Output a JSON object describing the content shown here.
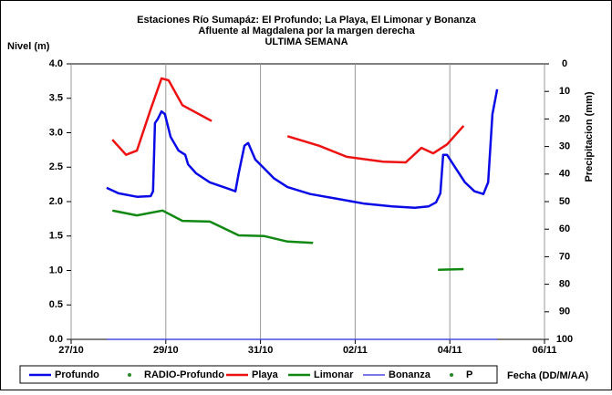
{
  "chart_data": {
    "type": "line",
    "title": "Estaciones Río Sumapáz: El Profundo; La Playa, El Limonar y Bonanza",
    "subtitle": [
      "Afluente al Magdalena por la margen derecha",
      "ULTIMA SEMANA"
    ],
    "ylabel": "Nivel (m)",
    "y2label": "Precipitacion (mm)",
    "xlabel": "Fecha (DD/M/AA)",
    "xlim": [
      0,
      10
    ],
    "xticks": [
      {
        "value": 0,
        "label": "27/10"
      },
      {
        "value": 2,
        "label": "29/10"
      },
      {
        "value": 4,
        "label": "31/10"
      },
      {
        "value": 6,
        "label": "02/11"
      },
      {
        "value": 8,
        "label": "04/11"
      },
      {
        "value": 10,
        "label": "06/11"
      }
    ],
    "xgrid": true,
    "ylim": [
      0,
      4
    ],
    "yticks": [
      {
        "value": 0,
        "label": "0.0"
      },
      {
        "value": 0.5,
        "label": "0.5"
      },
      {
        "value": 1,
        "label": "1.0"
      },
      {
        "value": 1.5,
        "label": "1.5"
      },
      {
        "value": 2,
        "label": "2.0"
      },
      {
        "value": 2.5,
        "label": "2.5"
      },
      {
        "value": 3,
        "label": "3.0"
      },
      {
        "value": 3.5,
        "label": "3.5"
      },
      {
        "value": 4,
        "label": "4.0"
      }
    ],
    "y2lim": [
      100,
      0
    ],
    "y2ticks": [
      0,
      10,
      20,
      30,
      40,
      50,
      60,
      70,
      80,
      90,
      100
    ],
    "series": [
      {
        "name": "Profundo",
        "color": "#0a0ae6",
        "style": "line",
        "x": [
          0.75,
          1.0,
          1.39,
          1.68,
          1.73,
          1.77,
          1.83,
          1.91,
          1.98,
          2.1,
          2.27,
          2.41,
          2.47,
          2.64,
          2.93,
          3.31,
          3.47,
          3.54,
          3.66,
          3.74,
          3.89,
          4.08,
          4.28,
          4.57,
          5.05,
          5.63,
          6.2,
          6.78,
          7.26,
          7.55,
          7.71,
          7.8,
          7.86,
          7.94,
          8.13,
          8.32,
          8.52,
          8.71,
          8.81,
          8.9,
          9.0
        ],
        "values": [
          2.2,
          2.12,
          2.07,
          2.08,
          2.15,
          3.14,
          3.2,
          3.31,
          3.27,
          2.94,
          2.74,
          2.68,
          2.54,
          2.41,
          2.28,
          2.19,
          2.15,
          2.41,
          2.81,
          2.85,
          2.61,
          2.48,
          2.34,
          2.21,
          2.11,
          2.04,
          1.97,
          1.93,
          1.91,
          1.93,
          1.99,
          2.12,
          2.68,
          2.68,
          2.48,
          2.28,
          2.15,
          2.11,
          2.28,
          3.27,
          3.63
        ]
      },
      {
        "name": "RADIO-Profundo",
        "color": "#2a8a2a",
        "style": "dot",
        "x": [],
        "values": []
      },
      {
        "name": "Playa",
        "color": "#ee1111",
        "style": "line",
        "x": [
          0.87,
          1.16,
          1.39,
          1.68,
          1.91,
          2.06,
          2.35,
          2.97,
          3.5,
          4.57,
          5.24,
          5.82,
          6.59,
          7.07,
          7.4,
          7.65,
          7.94,
          8.29
        ],
        "values": [
          2.9,
          2.68,
          2.74,
          3.34,
          3.79,
          3.76,
          3.4,
          3.17,
          null,
          2.95,
          2.81,
          2.65,
          2.58,
          2.57,
          2.78,
          2.7,
          2.83,
          3.1
        ]
      },
      {
        "name": "Limonar",
        "color": "#118811",
        "style": "line",
        "x": [
          0.87,
          1.39,
          1.93,
          2.35,
          2.93,
          3.54,
          4.08,
          4.57,
          5.11,
          6.5,
          7.75,
          8.29
        ],
        "values": [
          1.87,
          1.8,
          1.87,
          1.72,
          1.71,
          1.51,
          1.5,
          1.42,
          1.4,
          null,
          1.01,
          1.02
        ]
      },
      {
        "name": "Bonanza",
        "color": "#4a4ae0",
        "style": "thin",
        "x": [
          0.75,
          9.0
        ],
        "values": [
          0,
          0
        ]
      },
      {
        "name": "P",
        "color": "#228822",
        "style": "dot",
        "x": [],
        "values": []
      }
    ]
  }
}
